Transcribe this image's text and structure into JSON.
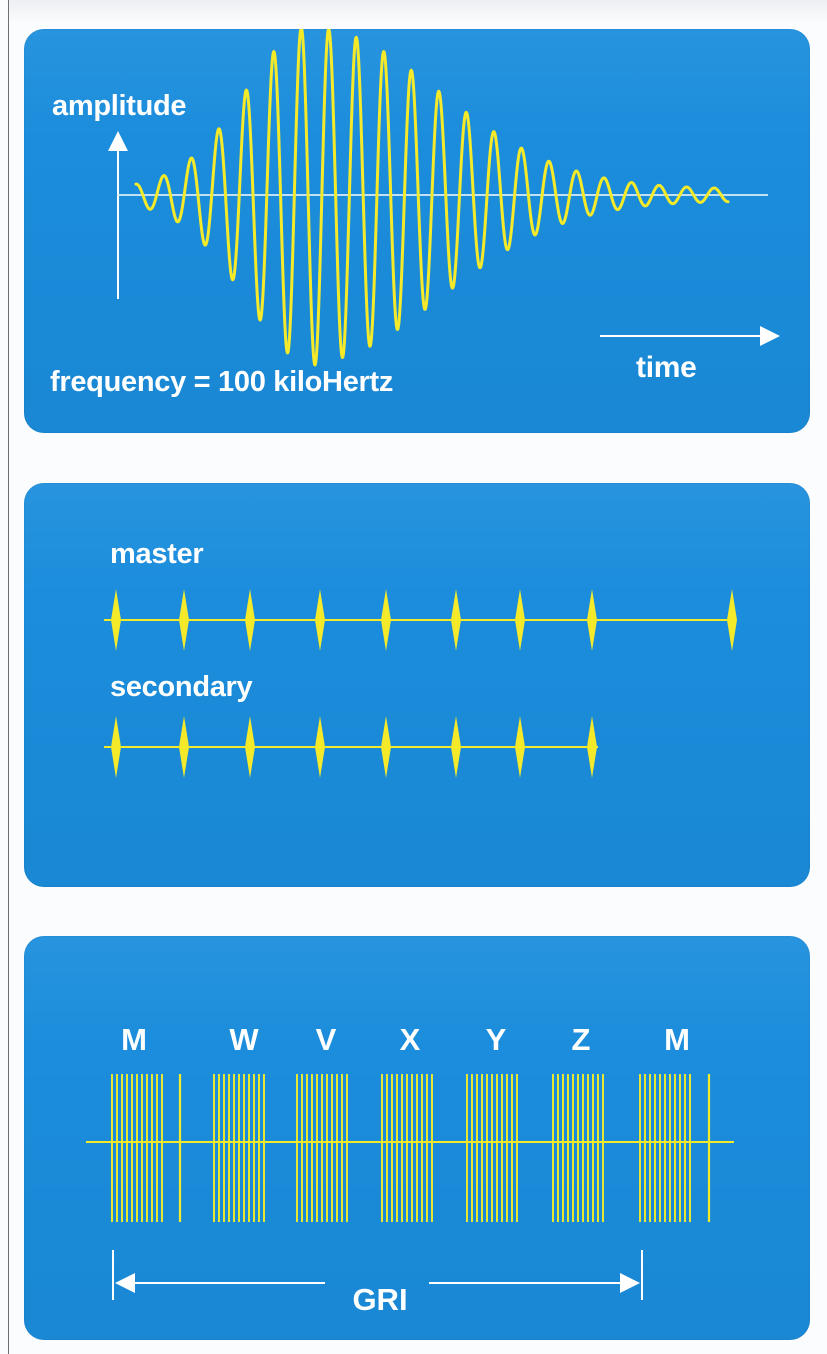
{
  "colors": {
    "panel": "#1b8ddc",
    "signal": "#f4ea29",
    "text": "#ffffff"
  },
  "panel1": {
    "y_axis_label": "amplitude",
    "x_axis_label": "time",
    "frequency_label": "frequency = 100 kiloHertz"
  },
  "panel2": {
    "master_label": "master",
    "secondary_label": "secondary",
    "master_pulse_count": 9,
    "secondary_pulse_count": 8
  },
  "panel3": {
    "stations": [
      "M",
      "W",
      "V",
      "X",
      "Y",
      "Z",
      "M"
    ],
    "interval_label": "GRI"
  }
}
